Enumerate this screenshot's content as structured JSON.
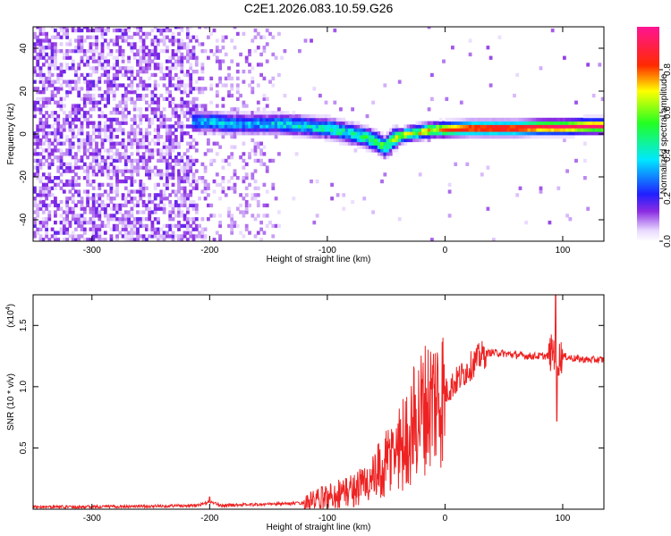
{
  "figure_title": "C2E1.2026.083.10.59.G26",
  "chart_data": [
    {
      "type": "heatmap",
      "title": "C2E1.2026.083.10.59.G26",
      "xlabel": "Height of straight line (km)",
      "ylabel": "Frequency (Hz)",
      "xlim": [
        -350,
        135
      ],
      "ylim": [
        -50,
        50
      ],
      "x_ticks": [
        -300,
        -200,
        -100,
        0,
        100
      ],
      "x_tick_labels": [
        "-300",
        "-200",
        "-100",
        "0",
        "100"
      ],
      "y_ticks": [
        -40,
        -20,
        0,
        20,
        40
      ],
      "y_tick_labels": [
        "-40",
        "-20",
        "0",
        "20",
        "40"
      ],
      "colorbar": {
        "label": "Normalized spectral amplitude",
        "range": [
          0.0,
          1.0
        ],
        "ticks": [
          0.0,
          0.2,
          0.4,
          0.6,
          0.8
        ],
        "tick_labels": [
          "0.0",
          "0.2",
          "0.4",
          "0.6",
          "0.8"
        ],
        "colormap": "rainbow (white-violet-blue-cyan-green-yellow-red-magenta)"
      },
      "ridge": {
        "description": "dominant frequency versus height",
        "x": [
          -215,
          -200,
          -180,
          -160,
          -140,
          -120,
          -100,
          -85,
          -70,
          -60,
          -52,
          -45,
          -35,
          -25,
          -15,
          0,
          20,
          40,
          60,
          80,
          100,
          120,
          135
        ],
        "frequency": [
          5,
          5,
          4,
          4,
          4,
          3,
          2,
          0,
          -2,
          -4,
          -7,
          -3,
          -1,
          0,
          1,
          1.5,
          2,
          2,
          2,
          2.5,
          2.5,
          3,
          3
        ],
        "peak_amplitude": [
          0.35,
          0.38,
          0.38,
          0.36,
          0.4,
          0.42,
          0.45,
          0.46,
          0.48,
          0.5,
          0.55,
          0.6,
          0.65,
          0.7,
          0.75,
          0.85,
          0.92,
          0.95,
          0.93,
          0.95,
          0.97,
          0.96,
          0.95
        ]
      }
    },
    {
      "type": "line",
      "title": "",
      "xlabel": "Height of straight line (km)",
      "ylabel": "SNR (10 * v/v)",
      "scale_label": "(x10",
      "scale_exponent": "4",
      "xlim": [
        -350,
        135
      ],
      "ylim": [
        0,
        1.75
      ],
      "y_unit_multiplier": 10000,
      "x_ticks": [
        -300,
        -200,
        -100,
        0,
        100
      ],
      "x_tick_labels": [
        "-300",
        "-200",
        "-100",
        "0",
        "100"
      ],
      "y_ticks": [
        0.5,
        1.0,
        1.5
      ],
      "y_tick_labels": [
        "0.5",
        "1.0",
        "1.5"
      ],
      "series": [
        {
          "name": "SNR",
          "color": "#ee2222",
          "x": [
            -350,
            -300,
            -250,
            -210,
            -200,
            -190,
            -180,
            -150,
            -120,
            -110,
            -100,
            -90,
            -80,
            -70,
            -60,
            -55,
            -50,
            -45,
            -40,
            -35,
            -30,
            -25,
            -20,
            -15,
            -10,
            -5,
            0,
            5,
            10,
            15,
            20,
            25,
            30,
            35,
            40,
            50,
            60,
            70,
            80,
            88,
            92,
            95,
            100,
            110,
            120,
            135
          ],
          "y": [
            0.02,
            0.02,
            0.025,
            0.03,
            0.06,
            0.03,
            0.035,
            0.04,
            0.05,
            0.07,
            0.1,
            0.13,
            0.15,
            0.2,
            0.25,
            0.3,
            0.35,
            0.45,
            0.5,
            0.55,
            0.6,
            0.75,
            0.8,
            0.85,
            0.9,
            0.92,
            0.95,
            1.0,
            1.05,
            1.1,
            1.15,
            1.2,
            1.25,
            1.27,
            1.28,
            1.27,
            1.26,
            1.25,
            1.25,
            1.25,
            1.3,
            1.22,
            1.25,
            1.23,
            1.22,
            1.22
          ]
        }
      ]
    }
  ]
}
